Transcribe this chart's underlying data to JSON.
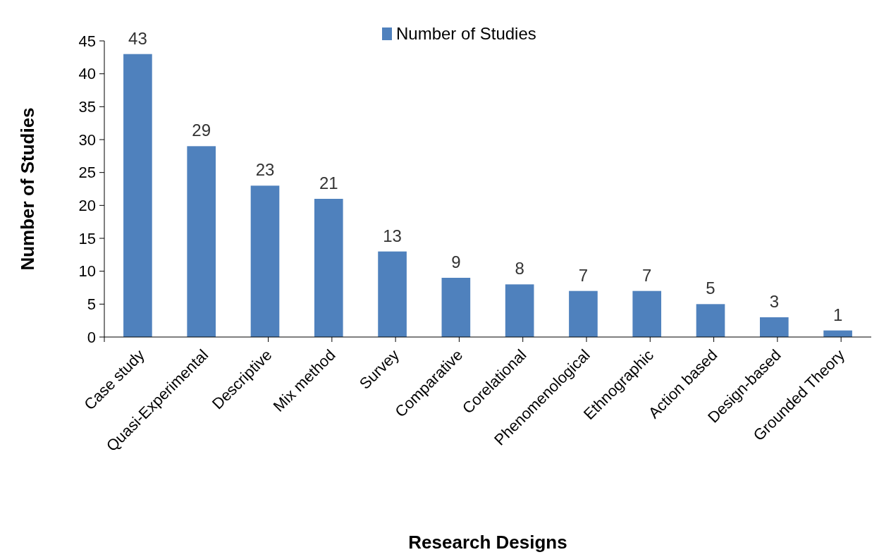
{
  "chart_data": {
    "type": "bar",
    "xlabel": "Research Designs",
    "ylabel": "Number of Studies",
    "categories": [
      "Case study",
      "Quasi-Experimental",
      "Descriptive",
      "Mix method",
      "Survey",
      "Comparative",
      "Corelational",
      "Phenomenological",
      "Ethnographic",
      "Action based",
      "Design-based",
      "Grounded Theory"
    ],
    "series": [
      {
        "name": "Number of Studies",
        "color": "#4f81bd",
        "values": [
          43,
          29,
          23,
          21,
          13,
          9,
          8,
          7,
          7,
          5,
          3,
          1
        ]
      }
    ],
    "ylim": [
      0,
      45
    ],
    "yticks": [
      0,
      5,
      10,
      15,
      20,
      25,
      30,
      35,
      40,
      45
    ],
    "data_labels": true,
    "legend": "top"
  }
}
